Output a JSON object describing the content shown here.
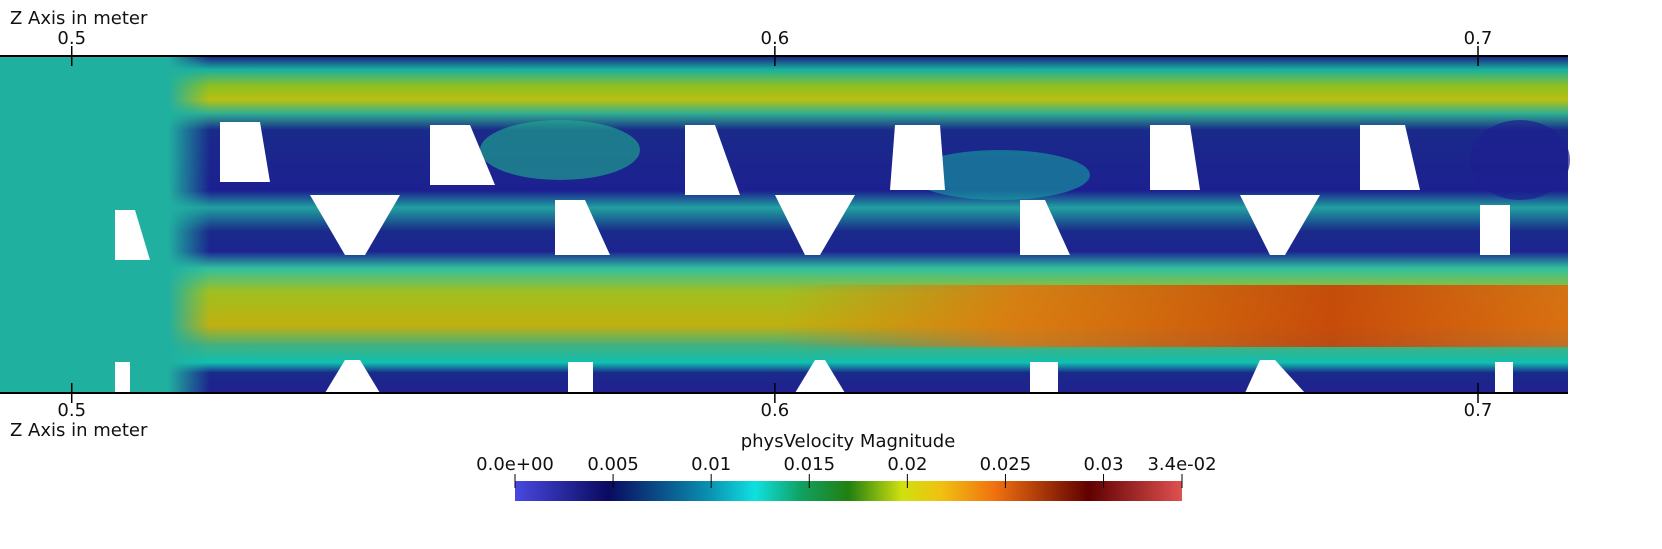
{
  "top_axis": {
    "title": "Z Axis in meter",
    "ticks": [
      0.5,
      0.6,
      0.7
    ],
    "range": [
      0.4898,
      0.7128
    ]
  },
  "bottom_axis": {
    "title": "Z Axis in meter",
    "ticks": [
      0.5,
      0.6,
      0.7
    ],
    "range": [
      0.4898,
      0.7128
    ]
  },
  "colorbar": {
    "title": "physVelocity Magnitude",
    "range": [
      0,
      0.034
    ],
    "ticks": [
      {
        "value": 0,
        "label": "0.0e+00"
      },
      0.005,
      0.01,
      0.015,
      0.02,
      0.025,
      0.03,
      {
        "value": 0.034,
        "label": "3.4e-02"
      }
    ]
  }
}
